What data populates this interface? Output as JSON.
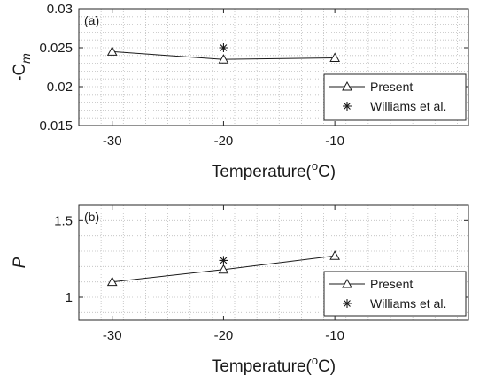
{
  "chart_data": [
    {
      "type": "line",
      "panel_label": "(a)",
      "xlabel_text": "Temperature(",
      "xlabel_sup": "o",
      "xlabel_end": "C)",
      "ylabel_text": "-C",
      "ylabel_sub": "m",
      "x_ticks": [
        "-30",
        "-20",
        "-10"
      ],
      "y_ticks": [
        "0.015",
        "0.02",
        "0.025",
        "0.03"
      ],
      "xlim": [
        -33,
        2
      ],
      "ylim": [
        0.015,
        0.03
      ],
      "grid": "dotted minor",
      "legend_position": "bottom-right",
      "series": [
        {
          "name": "Present",
          "marker": "triangle",
          "line": true,
          "x": [
            -30,
            -20,
            -10
          ],
          "y": [
            0.0245,
            0.0235,
            0.0237
          ]
        },
        {
          "name": "Williams et al.",
          "marker": "asterisk",
          "line": false,
          "x": [
            -20
          ],
          "y": [
            0.025
          ]
        }
      ]
    },
    {
      "type": "line",
      "panel_label": "(b)",
      "xlabel_text": "Temperature(",
      "xlabel_sup": "o",
      "xlabel_end": "C)",
      "ylabel_text": "P",
      "ylabel_sub": "",
      "x_ticks": [
        "-30",
        "-20",
        "-10"
      ],
      "y_ticks": [
        "1",
        "1.5"
      ],
      "xlim": [
        -33,
        2
      ],
      "ylim": [
        0.85,
        1.6
      ],
      "grid": "dotted minor",
      "legend_position": "bottom-right",
      "series": [
        {
          "name": "Present",
          "marker": "triangle",
          "line": true,
          "x": [
            -30,
            -20,
            -10
          ],
          "y": [
            1.1,
            1.18,
            1.27
          ]
        },
        {
          "name": "Williams et al.",
          "marker": "asterisk",
          "line": false,
          "x": [
            -20
          ],
          "y": [
            1.24
          ]
        }
      ]
    }
  ]
}
